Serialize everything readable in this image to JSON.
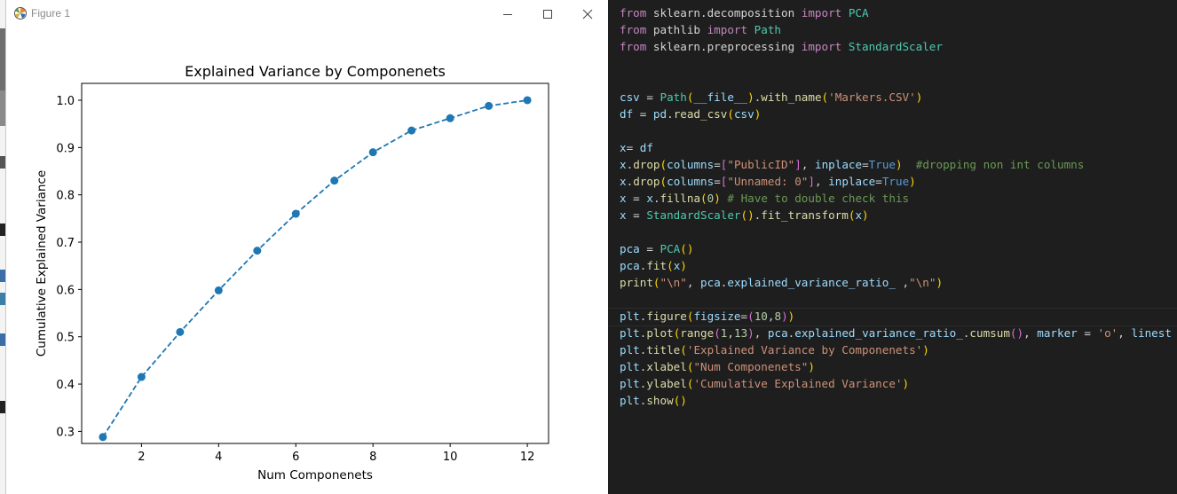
{
  "window": {
    "title": "Figure 1",
    "controls": {
      "minimize": "minimize-icon",
      "maximize": "maximize-icon",
      "close": "close-icon"
    }
  },
  "colors": {
    "series": "#1f77b4",
    "editor_bg": "#1e1e1e"
  },
  "chart_data": {
    "type": "line",
    "title": "Explained Variance by Componenets",
    "xlabel": "Num Componenets",
    "ylabel": "Cumulative Explained Variance",
    "x": [
      1,
      2,
      3,
      4,
      5,
      6,
      7,
      8,
      9,
      10,
      11,
      12
    ],
    "y": [
      0.288,
      0.415,
      0.51,
      0.598,
      0.682,
      0.76,
      0.83,
      0.89,
      0.936,
      0.962,
      0.988,
      1.0
    ],
    "xlim": [
      0.45,
      12.55
    ],
    "ylim": [
      0.2745,
      1.0356
    ],
    "xticks": [
      "2",
      "4",
      "6",
      "8",
      "10",
      "12"
    ],
    "yticks": [
      "0.3",
      "0.4",
      "0.5",
      "0.6",
      "0.7",
      "0.8",
      "0.9",
      "1.0"
    ],
    "marker": "o",
    "linestyle": "dashed",
    "grid": false
  },
  "code": {
    "lines": [
      {
        "tokens": [
          [
            "kw",
            "from"
          ],
          [
            "op",
            " sklearn.decomposition "
          ],
          [
            "kw",
            "import"
          ],
          [
            "mod",
            " PCA"
          ]
        ]
      },
      {
        "tokens": [
          [
            "kw",
            "from"
          ],
          [
            "op",
            " pathlib "
          ],
          [
            "kw",
            "import"
          ],
          [
            "mod",
            " Path"
          ]
        ]
      },
      {
        "tokens": [
          [
            "kw",
            "from"
          ],
          [
            "op",
            " sklearn.preprocessing "
          ],
          [
            "kw",
            "import"
          ],
          [
            "mod",
            " StandardScaler"
          ]
        ]
      },
      {
        "tokens": []
      },
      {
        "tokens": []
      },
      {
        "tokens": [
          [
            "pm",
            "csv"
          ],
          [
            "op",
            " = "
          ],
          [
            "mod",
            "Path"
          ],
          [
            "br",
            "("
          ],
          [
            "pm",
            "__file__"
          ],
          [
            "br",
            ")"
          ],
          [
            "op",
            "."
          ],
          [
            "fn",
            "with_name"
          ],
          [
            "br",
            "("
          ],
          [
            "str",
            "'Markers.CSV'"
          ],
          [
            "br",
            ")"
          ]
        ]
      },
      {
        "tokens": [
          [
            "pm",
            "df"
          ],
          [
            "op",
            " = "
          ],
          [
            "pm",
            "pd"
          ],
          [
            "op",
            "."
          ],
          [
            "fn",
            "read_csv"
          ],
          [
            "br",
            "("
          ],
          [
            "pm",
            "csv"
          ],
          [
            "br",
            ")"
          ]
        ]
      },
      {
        "tokens": []
      },
      {
        "tokens": [
          [
            "pm",
            "x"
          ],
          [
            "op",
            "= "
          ],
          [
            "pm",
            "df"
          ]
        ]
      },
      {
        "tokens": [
          [
            "pm",
            "x"
          ],
          [
            "op",
            "."
          ],
          [
            "fn",
            "drop"
          ],
          [
            "br",
            "("
          ],
          [
            "pm",
            "columns"
          ],
          [
            "op",
            "="
          ],
          [
            "br2",
            "["
          ],
          [
            "str",
            "\"PublicID\""
          ],
          [
            "br2",
            "]"
          ],
          [
            "op",
            ", "
          ],
          [
            "pm",
            "inplace"
          ],
          [
            "op",
            "="
          ],
          [
            "bool",
            "True"
          ],
          [
            "br",
            ")"
          ],
          [
            "op",
            "  "
          ],
          [
            "cmt",
            "#dropping non int columns"
          ]
        ]
      },
      {
        "tokens": [
          [
            "pm",
            "x"
          ],
          [
            "op",
            "."
          ],
          [
            "fn",
            "drop"
          ],
          [
            "br",
            "("
          ],
          [
            "pm",
            "columns"
          ],
          [
            "op",
            "="
          ],
          [
            "br2",
            "["
          ],
          [
            "str",
            "\"Unnamed: 0\""
          ],
          [
            "br2",
            "]"
          ],
          [
            "op",
            ", "
          ],
          [
            "pm",
            "inplace"
          ],
          [
            "op",
            "="
          ],
          [
            "bool",
            "True"
          ],
          [
            "br",
            ")"
          ]
        ]
      },
      {
        "tokens": [
          [
            "pm",
            "x"
          ],
          [
            "op",
            " = "
          ],
          [
            "pm",
            "x"
          ],
          [
            "op",
            "."
          ],
          [
            "fn",
            "fillna"
          ],
          [
            "br",
            "("
          ],
          [
            "num",
            "0"
          ],
          [
            "br",
            ")"
          ],
          [
            "op",
            " "
          ],
          [
            "cmt",
            "# Have to double check this"
          ]
        ]
      },
      {
        "tokens": [
          [
            "pm",
            "x"
          ],
          [
            "op",
            " = "
          ],
          [
            "mod",
            "StandardScaler"
          ],
          [
            "br",
            "()"
          ],
          [
            "op",
            "."
          ],
          [
            "fn",
            "fit_transform"
          ],
          [
            "br",
            "("
          ],
          [
            "pm",
            "x"
          ],
          [
            "br",
            ")"
          ]
        ]
      },
      {
        "tokens": []
      },
      {
        "tokens": [
          [
            "pm",
            "pca"
          ],
          [
            "op",
            " = "
          ],
          [
            "mod",
            "PCA"
          ],
          [
            "br",
            "()"
          ]
        ]
      },
      {
        "tokens": [
          [
            "pm",
            "pca"
          ],
          [
            "op",
            "."
          ],
          [
            "fn",
            "fit"
          ],
          [
            "br",
            "("
          ],
          [
            "pm",
            "x"
          ],
          [
            "br",
            ")"
          ]
        ]
      },
      {
        "tokens": [
          [
            "fn",
            "print"
          ],
          [
            "br",
            "("
          ],
          [
            "str",
            "\"\\n\""
          ],
          [
            "op",
            ", "
          ],
          [
            "pm",
            "pca"
          ],
          [
            "op",
            "."
          ],
          [
            "pm",
            "explained_variance_ratio_"
          ],
          [
            "op",
            " ,"
          ],
          [
            "str",
            "\"\\n\""
          ],
          [
            "br",
            ")"
          ]
        ]
      },
      {
        "tokens": []
      },
      {
        "tokens": [
          [
            "pm",
            "plt"
          ],
          [
            "op",
            "."
          ],
          [
            "fn",
            "figure"
          ],
          [
            "br",
            "("
          ],
          [
            "pm",
            "figsize"
          ],
          [
            "op",
            "="
          ],
          [
            "br2",
            "("
          ],
          [
            "num",
            "10"
          ],
          [
            "op",
            ","
          ],
          [
            "num",
            "8"
          ],
          [
            "br2",
            ")"
          ],
          [
            "br",
            ")"
          ]
        ]
      },
      {
        "tokens": [
          [
            "pm",
            "plt"
          ],
          [
            "op",
            "."
          ],
          [
            "fn",
            "plot"
          ],
          [
            "br",
            "("
          ],
          [
            "fn",
            "range"
          ],
          [
            "br2",
            "("
          ],
          [
            "num",
            "1"
          ],
          [
            "op",
            ","
          ],
          [
            "num",
            "13"
          ],
          [
            "br2",
            ")"
          ],
          [
            "op",
            ", "
          ],
          [
            "pm",
            "pca"
          ],
          [
            "op",
            "."
          ],
          [
            "pm",
            "explained_variance_ratio_"
          ],
          [
            "op",
            "."
          ],
          [
            "fn",
            "cumsum"
          ],
          [
            "br2",
            "()"
          ],
          [
            "op",
            ", "
          ],
          [
            "pm",
            "marker"
          ],
          [
            "op",
            " = "
          ],
          [
            "str",
            "'o'"
          ],
          [
            "op",
            ", "
          ],
          [
            "pm",
            "linest"
          ]
        ]
      },
      {
        "tokens": [
          [
            "pm",
            "plt"
          ],
          [
            "op",
            "."
          ],
          [
            "fn",
            "title"
          ],
          [
            "br",
            "("
          ],
          [
            "str",
            "'Explained Variance by Componenets'"
          ],
          [
            "br",
            ")"
          ]
        ]
      },
      {
        "tokens": [
          [
            "pm",
            "plt"
          ],
          [
            "op",
            "."
          ],
          [
            "fn",
            "xlabel"
          ],
          [
            "br",
            "("
          ],
          [
            "str",
            "\"Num Componenets\""
          ],
          [
            "br",
            ")"
          ]
        ]
      },
      {
        "tokens": [
          [
            "pm",
            "plt"
          ],
          [
            "op",
            "."
          ],
          [
            "fn",
            "ylabel"
          ],
          [
            "br",
            "("
          ],
          [
            "str",
            "'Cumulative Explained Variance'"
          ],
          [
            "br",
            ")"
          ]
        ]
      },
      {
        "tokens": [
          [
            "pm",
            "plt"
          ],
          [
            "op",
            "."
          ],
          [
            "fn",
            "show"
          ],
          [
            "br",
            "()"
          ]
        ]
      }
    ]
  }
}
